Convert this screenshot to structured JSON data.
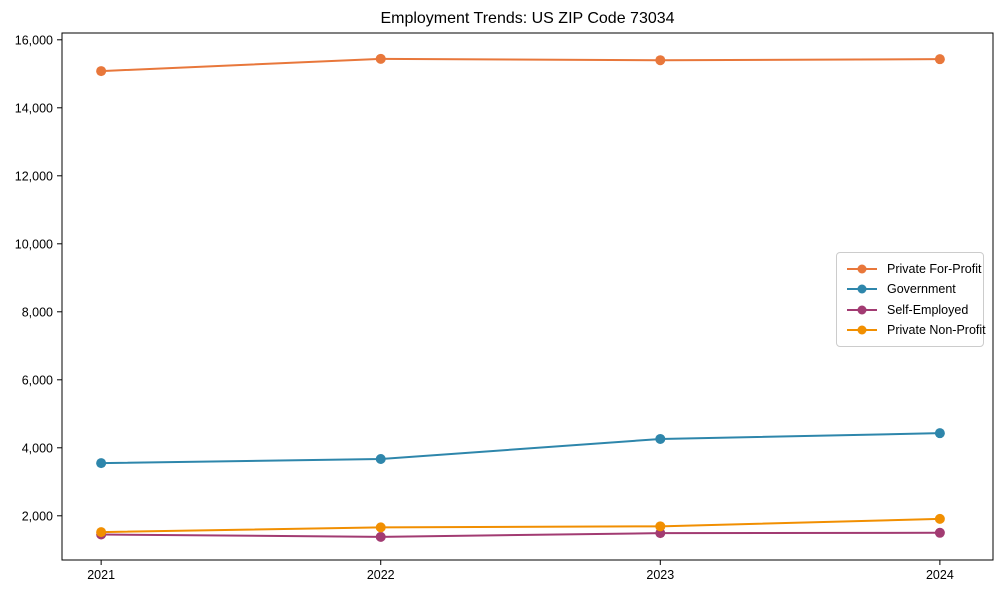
{
  "chart_data": {
    "type": "line",
    "title": "Employment Trends: US ZIP Code 73034",
    "x": [
      2021,
      2022,
      2023,
      2024
    ],
    "x_tick_labels": [
      "2021",
      "2022",
      "2023",
      "2024"
    ],
    "y_ticks": [
      2000,
      4000,
      6000,
      8000,
      10000,
      12000,
      14000,
      16000
    ],
    "y_tick_labels": [
      "2,000",
      "4,000",
      "6,000",
      "8,000",
      "10,000",
      "12,000",
      "14,000",
      "16,000"
    ],
    "xlim": [
      2020.86,
      2024.19
    ],
    "ylim": [
      700,
      16200
    ],
    "grid": false,
    "legend_position": "center-right",
    "xlabel": "",
    "ylabel": "",
    "series": [
      {
        "name": "Private For-Profit",
        "color": "#e8773b",
        "values": [
          15080,
          15440,
          15400,
          15430
        ]
      },
      {
        "name": "Government",
        "color": "#2e86ab",
        "values": [
          3550,
          3670,
          4260,
          4430
        ]
      },
      {
        "name": "Self-Employed",
        "color": "#a23b72",
        "values": [
          1450,
          1380,
          1490,
          1500
        ]
      },
      {
        "name": "Private Non-Profit",
        "color": "#f18f01",
        "values": [
          1520,
          1660,
          1690,
          1910
        ]
      }
    ],
    "style": {
      "spine_color": "#000000",
      "legend_border_color": "#cccccc",
      "background": "#ffffff",
      "line_width": 2,
      "marker_radius": 5
    }
  }
}
